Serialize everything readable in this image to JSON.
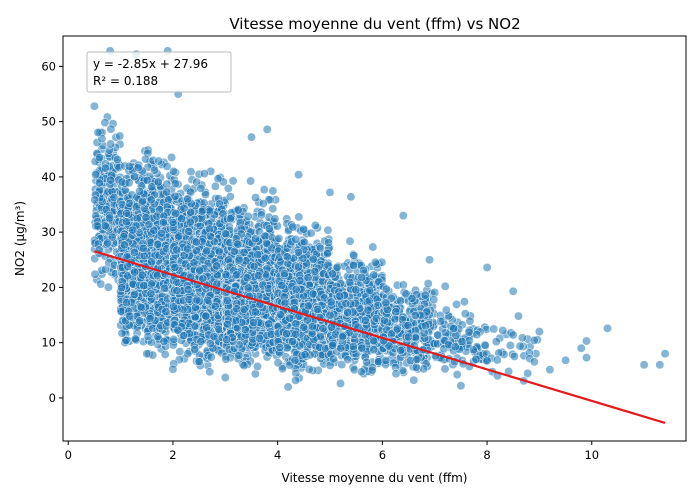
{
  "chart_data": {
    "type": "scatter",
    "title": "Vitesse moyenne du vent (ffm) vs NO2",
    "xlabel": "Vitesse moyenne du vent (ffm)",
    "ylabel": "NO2 (µg/m³)",
    "xlim": [
      -0.1,
      11.8
    ],
    "ylim": [
      -7.8,
      65.5
    ],
    "xticks": [
      0,
      2,
      4,
      6,
      8,
      10
    ],
    "yticks": [
      0,
      10,
      20,
      30,
      40,
      50,
      60
    ],
    "grid": false,
    "point_color": "#1f77b4",
    "line_color": "#e41a1c",
    "regression": {
      "slope": -2.85,
      "intercept": 27.96,
      "x_range": [
        0.5,
        11.4
      ],
      "equation_text": "y = -2.85x + 27.96",
      "r2_text": "R² = 0.188"
    },
    "points_sample": [
      [
        0.8,
        62.8
      ],
      [
        0.5,
        52.8
      ],
      [
        1.3,
        62.2
      ],
      [
        1.9,
        62.8
      ],
      [
        0.7,
        49.8
      ],
      [
        2.1,
        55.0
      ],
      [
        3.8,
        48.6
      ],
      [
        2.6,
        40.6
      ],
      [
        3.5,
        47.2
      ],
      [
        4.4,
        40.4
      ],
      [
        5.0,
        37.2
      ],
      [
        5.4,
        36.4
      ],
      [
        6.4,
        33.0
      ],
      [
        6.9,
        25.0
      ],
      [
        7.2,
        20.2
      ],
      [
        8.0,
        23.6
      ],
      [
        8.5,
        19.3
      ],
      [
        8.6,
        14.8
      ],
      [
        8.3,
        12.2
      ],
      [
        8.9,
        10.4
      ],
      [
        9.0,
        12.0
      ],
      [
        9.2,
        5.1
      ],
      [
        9.8,
        9.0
      ],
      [
        9.9,
        10.3
      ],
      [
        9.9,
        7.3
      ],
      [
        10.3,
        12.6
      ],
      [
        11.0,
        6.0
      ],
      [
        11.3,
        6.0
      ],
      [
        11.4,
        8.0
      ],
      [
        7.5,
        2.2
      ],
      [
        6.6,
        3.2
      ],
      [
        5.2,
        2.6
      ],
      [
        4.2,
        2.0
      ],
      [
        3.0,
        3.7
      ],
      [
        2.0,
        5.2
      ],
      [
        1.5,
        8.0
      ],
      [
        8.2,
        4.0
      ],
      [
        8.7,
        3.1
      ],
      [
        8.0,
        6.7
      ],
      [
        9.5,
        6.8
      ]
    ],
    "cloud_bands": [
      {
        "x_min": 0.5,
        "x_max": 1.0,
        "lo": 18,
        "hi": 55,
        "n": 240
      },
      {
        "x_min": 1.0,
        "x_max": 2.0,
        "lo": 6,
        "hi": 48,
        "n": 1500
      },
      {
        "x_min": 2.0,
        "x_max": 3.0,
        "lo": 4,
        "hi": 44,
        "n": 1500
      },
      {
        "x_min": 3.0,
        "x_max": 4.0,
        "lo": 3.5,
        "hi": 40,
        "n": 1250
      },
      {
        "x_min": 4.0,
        "x_max": 5.0,
        "lo": 2.5,
        "hi": 35,
        "n": 900
      },
      {
        "x_min": 5.0,
        "x_max": 6.0,
        "lo": 2.5,
        "hi": 30,
        "n": 560
      },
      {
        "x_min": 6.0,
        "x_max": 7.0,
        "lo": 3,
        "hi": 24,
        "n": 280
      },
      {
        "x_min": 7.0,
        "x_max": 8.0,
        "lo": 3,
        "hi": 19,
        "n": 110
      },
      {
        "x_min": 8.0,
        "x_max": 9.0,
        "lo": 3,
        "hi": 15,
        "n": 28
      }
    ]
  }
}
